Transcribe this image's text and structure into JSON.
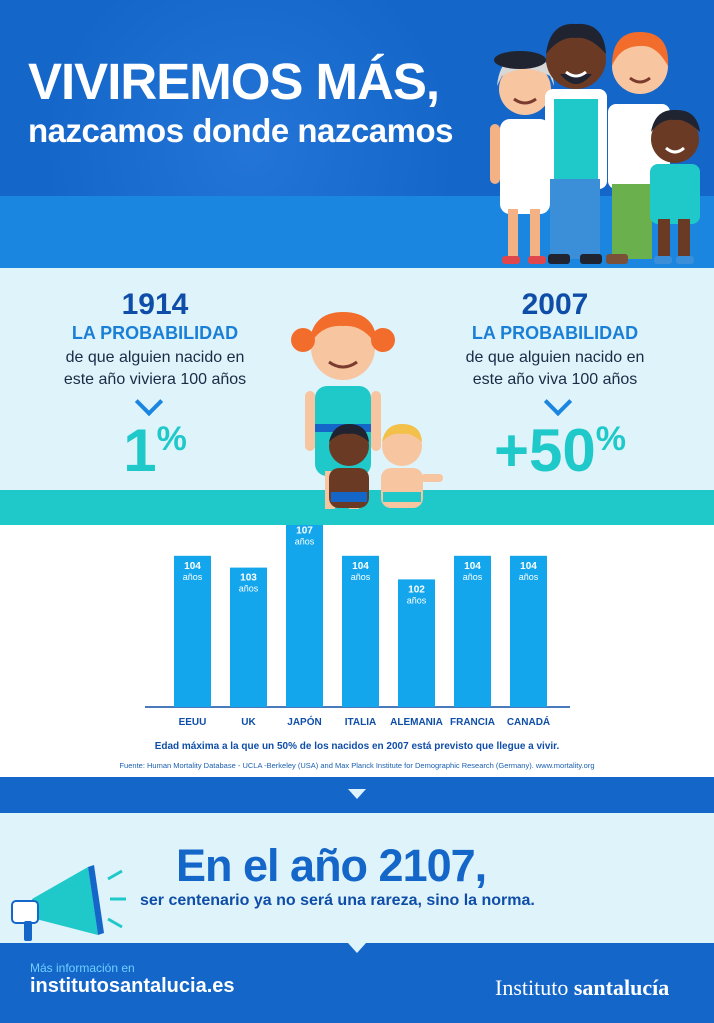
{
  "header": {
    "title_line1": "VIVIREMOS MÁS,",
    "title_line2": "nazcamos donde nazcamos"
  },
  "probability": {
    "left": {
      "year": "1914",
      "label": "LA PROBABILIDAD",
      "desc_line1": "de que alguien nacido en",
      "desc_line2": "este año viviera 100 años",
      "value": "1",
      "unit": "%"
    },
    "right": {
      "year": "2007",
      "label": "LA PROBABILIDAD",
      "desc_line1": "de que alguien nacido en",
      "desc_line2": "este año viva 100 años",
      "value": "+50",
      "unit": "%"
    }
  },
  "chart_data": {
    "type": "bar",
    "categories": [
      "EEUU",
      "UK",
      "JAPÓN",
      "ITALIA",
      "ALEMANIA",
      "FRANCIA",
      "CANADÁ"
    ],
    "values": [
      104,
      103,
      107,
      104,
      102,
      104,
      104
    ],
    "value_unit": "años",
    "caption": "Edad máxima a la que un 50% de los nacidos en 2007 está previsto que llegue a vivir.",
    "source": "Fuente: Human Mortality Database - UCLA -Berkeley (USA) and Max Planck Institute for Demographic Research (Germany). www.mortality.org",
    "bar_color": "#13a6ec"
  },
  "future": {
    "title": "En el año 2107,",
    "subtitle": "ser centenario ya no será una rareza, sino la norma."
  },
  "footer": {
    "more_info": "Más información en",
    "website": "institutosantalucia.es",
    "brand_light": "Instituto ",
    "brand_bold": "santalucía"
  },
  "colors": {
    "primary_blue": "#1466c9",
    "light_bg": "#dff3fb",
    "accent_teal": "#1fc9c9",
    "bar_blue": "#13a6ec"
  },
  "icons": [
    "megaphone-icon",
    "chevron-down-icon"
  ]
}
